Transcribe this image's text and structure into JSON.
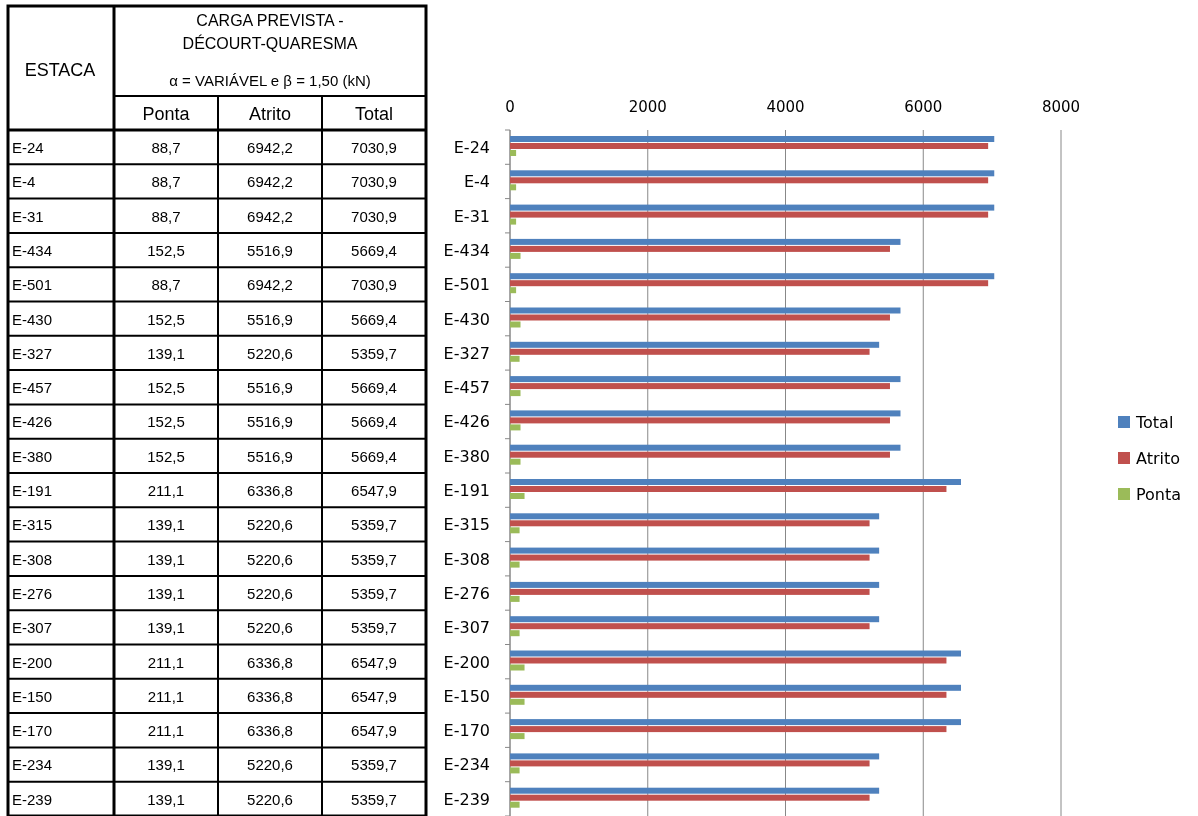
{
  "chart_data": {
    "type": "bar",
    "orientation": "horizontal",
    "title": "CARGA PREVISTA - DÉCOURT-QUARESMA",
    "subtitle": "α = VARIÁVEL e β = 1,50  (kN)",
    "annotations": [
      "ESTACA"
    ],
    "categories": [
      "E-24",
      "E-4",
      "E-31",
      "E-434",
      "E-501",
      "E-430",
      "E-327",
      "E-457",
      "E-426",
      "E-380",
      "E-191",
      "E-315",
      "E-308",
      "E-276",
      "E-307",
      "E-200",
      "E-150",
      "E-170",
      "E-234",
      "E-239"
    ],
    "series": [
      {
        "name": "Total",
        "color": "#4f81bd",
        "values": [
          7030.9,
          7030.9,
          7030.9,
          5669.4,
          7030.9,
          5669.4,
          5359.7,
          5669.4,
          5669.4,
          5669.4,
          6547.9,
          5359.7,
          5359.7,
          5359.7,
          5359.7,
          6547.9,
          6547.9,
          6547.9,
          5359.7,
          5359.7
        ],
        "value_labels": [
          "7030,9",
          "7030,9",
          "7030,9",
          "5669,4",
          "7030,9",
          "5669,4",
          "5359,7",
          "5669,4",
          "5669,4",
          "5669,4",
          "6547,9",
          "5359,7",
          "5359,7",
          "5359,7",
          "5359,7",
          "6547,9",
          "6547,9",
          "6547,9",
          "5359,7",
          "5359,7"
        ]
      },
      {
        "name": "Atrito",
        "color": "#c0504d",
        "values": [
          6942.2,
          6942.2,
          6942.2,
          5516.9,
          6942.2,
          5516.9,
          5220.6,
          5516.9,
          5516.9,
          5516.9,
          6336.8,
          5220.6,
          5220.6,
          5220.6,
          5220.6,
          6336.8,
          6336.8,
          6336.8,
          5220.6,
          5220.6
        ],
        "value_labels": [
          "6942,2",
          "6942,2",
          "6942,2",
          "5516,9",
          "6942,2",
          "5516,9",
          "5220,6",
          "5516,9",
          "5516,9",
          "5516,9",
          "6336,8",
          "5220,6",
          "5220,6",
          "5220,6",
          "5220,6",
          "6336,8",
          "6336,8",
          "6336,8",
          "5220,6",
          "5220,6"
        ]
      },
      {
        "name": "Ponta",
        "color": "#9bbb59",
        "values": [
          88.7,
          88.7,
          88.7,
          152.5,
          88.7,
          152.5,
          139.1,
          152.5,
          152.5,
          152.5,
          211.1,
          139.1,
          139.1,
          139.1,
          139.1,
          211.1,
          211.1,
          211.1,
          139.1,
          139.1
        ],
        "value_labels": [
          "88,7",
          "88,7",
          "88,7",
          "152,5",
          "88,7",
          "152,5",
          "139,1",
          "152,5",
          "152,5",
          "152,5",
          "211,1",
          "139,1",
          "139,1",
          "139,1",
          "139,1",
          "211,1",
          "211,1",
          "211,1",
          "139,1",
          "139,1"
        ]
      }
    ],
    "xlim": [
      0,
      8000
    ],
    "xticks": [
      0,
      2000,
      4000,
      6000,
      8000
    ],
    "grid": "x",
    "legend": "right"
  }
}
